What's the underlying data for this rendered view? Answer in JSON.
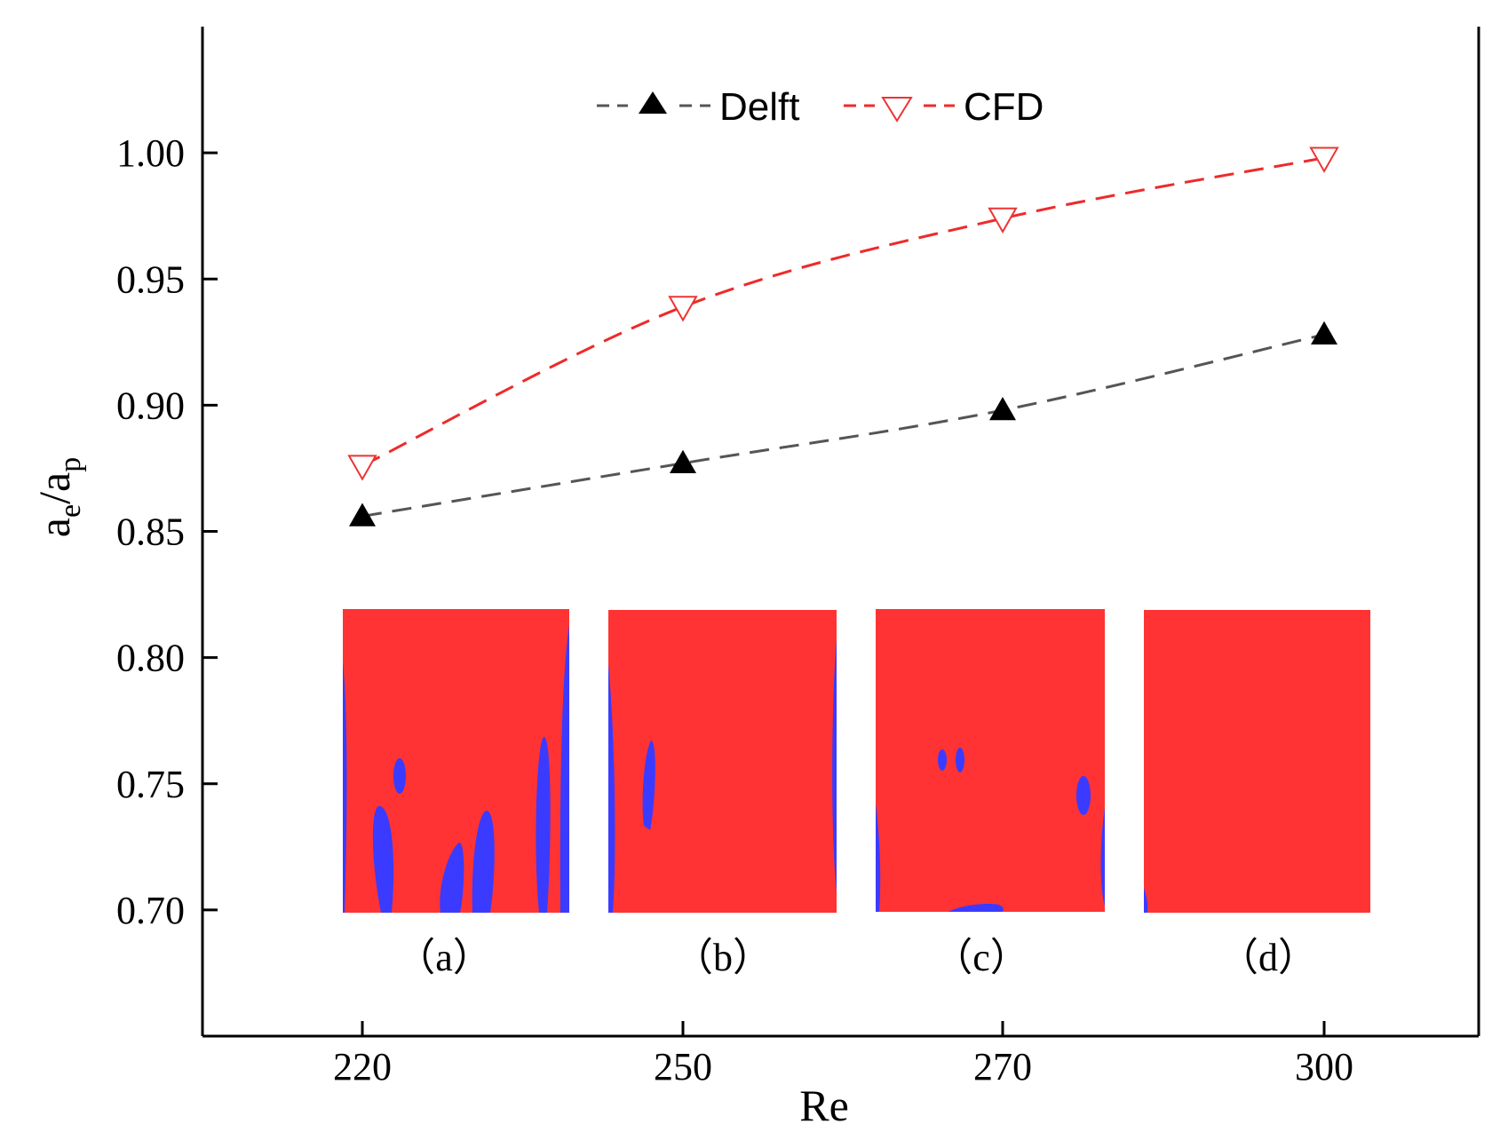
{
  "chart_data": {
    "type": "line",
    "categories": [
      "220",
      "250",
      "270",
      "300"
    ],
    "x_positions": [
      0,
      1,
      2,
      3
    ],
    "xlabel": "Re",
    "ylabel": {
      "base": "a",
      "sub1": "e",
      "sep": "/",
      "base2": "a",
      "sub2": "p"
    },
    "ylim": [
      0.65,
      1.05
    ],
    "yticks": [
      "0.70",
      "0.75",
      "0.80",
      "0.85",
      "0.90",
      "0.95",
      "1.00"
    ],
    "ytick_values": [
      0.7,
      0.75,
      0.8,
      0.85,
      0.9,
      0.95,
      1.0
    ],
    "series": [
      {
        "name": "Delft",
        "values": [
          0.856,
          0.877,
          0.898,
          0.928
        ],
        "color": "#555555",
        "marker_color": "#000000",
        "marker": "triangle-up-filled"
      },
      {
        "name": "CFD",
        "values": [
          0.876,
          0.939,
          0.974,
          0.998
        ],
        "color": "#ee2a2a",
        "marker_color": "#ee3333",
        "marker": "triangle-down-open"
      }
    ],
    "legend_position": "top-center",
    "grid": false
  },
  "insets": [
    {
      "label": "（a）",
      "fill": "#ff3333",
      "blob_color": "#3b3bff"
    },
    {
      "label": "（b）",
      "fill": "#ff3333",
      "blob_color": "#3b3bff"
    },
    {
      "label": "（c）",
      "fill": "#ff3333",
      "blob_color": "#3b3bff"
    },
    {
      "label": "（d）",
      "fill": "#ff3333",
      "blob_color": "#3b3bff"
    }
  ]
}
